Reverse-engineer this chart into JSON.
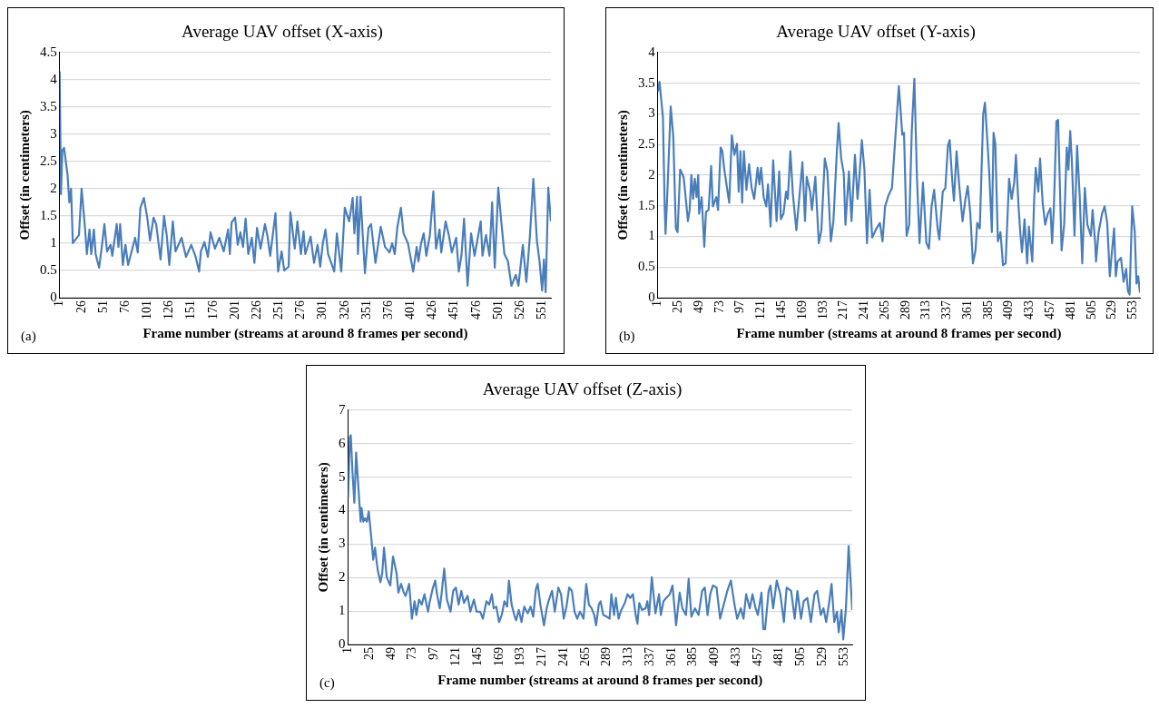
{
  "chart_data": [
    {
      "type": "line",
      "title": "Average UAV offset (X-axis)",
      "xlabel": "Frame number (streams at around 8 frames per second)",
      "ylabel": "Offset (in centimeters)",
      "annotations": [
        "(a)"
      ],
      "grid": "y",
      "marker": "none",
      "xlim": [
        1,
        561
      ],
      "xticks": [
        1,
        26,
        51,
        76,
        101,
        126,
        151,
        176,
        201,
        226,
        251,
        276,
        301,
        326,
        351,
        376,
        401,
        426,
        451,
        476,
        501,
        526,
        551
      ],
      "ylim": [
        0,
        4.5
      ],
      "yticks": [
        0,
        0.5,
        1,
        1.5,
        2,
        2.5,
        3,
        3.5,
        4,
        4.5
      ],
      "series": [
        {
          "color": "#4a7ebb",
          "x": [
            1,
            2.5,
            4,
            6,
            10,
            12,
            14,
            16,
            23,
            26,
            30,
            32,
            35,
            37,
            40,
            42,
            46,
            49,
            52,
            55,
            59,
            61,
            66,
            68,
            70,
            73,
            76,
            79,
            83,
            87,
            90,
            93,
            97,
            101,
            104,
            108,
            111,
            116,
            120,
            123,
            126,
            130,
            133,
            140,
            145,
            151,
            156,
            160,
            162,
            166,
            170,
            173,
            178,
            183,
            188,
            193,
            195,
            197,
            201,
            204,
            207,
            210,
            213,
            216,
            220,
            223,
            226,
            230,
            235,
            238,
            241,
            247,
            250,
            254,
            257,
            262,
            264,
            269,
            272,
            276,
            279,
            281,
            287,
            291,
            295,
            298,
            301,
            304,
            307,
            314,
            317,
            322,
            326,
            331,
            335,
            337,
            340,
            341,
            344,
            349,
            353,
            356,
            361,
            367,
            372,
            377,
            380,
            383,
            386,
            390,
            393,
            398,
            404,
            408,
            410,
            413,
            416,
            419,
            423,
            427,
            430,
            434,
            436,
            441,
            445,
            448,
            453,
            456,
            459,
            462,
            466,
            470,
            474,
            481,
            483,
            487,
            491,
            494,
            497,
            501,
            504,
            508,
            512,
            516,
            521,
            524,
            529,
            533,
            537,
            541,
            545,
            548,
            551,
            553,
            555,
            558,
            561
          ],
          "values": [
            4.15,
            1.9,
            2.7,
            2.75,
            2.25,
            1.75,
            2.0,
            1.0,
            1.15,
            2.0,
            1.25,
            0.8,
            1.25,
            0.8,
            1.25,
            0.8,
            0.55,
            0.93,
            1.35,
            0.85,
            0.97,
            0.77,
            1.35,
            0.93,
            1.35,
            0.6,
            0.97,
            0.6,
            0.85,
            1.1,
            0.83,
            1.65,
            1.83,
            1.45,
            1.05,
            1.47,
            1.35,
            0.7,
            1.5,
            1.15,
            0.6,
            1.4,
            0.85,
            1.1,
            0.75,
            0.97,
            0.75,
            0.48,
            0.85,
            1.02,
            0.75,
            1.2,
            0.9,
            1.1,
            0.85,
            1.25,
            0.8,
            1.38,
            1.47,
            0.97,
            1.2,
            0.93,
            1.45,
            0.8,
            1.1,
            0.64,
            1.28,
            0.9,
            1.35,
            1.12,
            0.77,
            1.55,
            0.48,
            0.85,
            0.5,
            0.57,
            1.57,
            0.9,
            1.4,
            0.8,
            1.22,
            0.8,
            1.12,
            0.64,
            0.97,
            0.57,
            1.0,
            1.25,
            0.8,
            0.48,
            1.18,
            0.48,
            1.65,
            1.4,
            1.83,
            1.18,
            1.85,
            0.8,
            1.85,
            0.45,
            1.28,
            1.35,
            0.64,
            1.3,
            0.93,
            0.83,
            1.0,
            0.8,
            1.3,
            1.65,
            1.18,
            1.0,
            0.48,
            0.93,
            0.67,
            1.0,
            1.18,
            0.77,
            1.15,
            1.95,
            0.9,
            1.25,
            0.83,
            1.4,
            1.12,
            0.83,
            1.1,
            0.48,
            0.77,
            1.45,
            0.22,
            1.18,
            0.77,
            1.4,
            0.77,
            1.15,
            0.77,
            1.75,
            0.55,
            2.02,
            1.47,
            0.8,
            0.67,
            0.22,
            0.42,
            0.22,
            0.97,
            0.29,
            1.12,
            2.18,
            1.05,
            0.67,
            0.13,
            0.7,
            0.1,
            2.02,
            1.4
          ]
        }
      ]
    },
    {
      "type": "line",
      "title": "Average UAV offset (Y-axis)",
      "xlabel": "Frame number (streams at around 8 frames per second)",
      "ylabel": "Offset (in centimeters)",
      "annotations": [
        "(b)"
      ],
      "grid": "y",
      "marker": "none",
      "xlim": [
        1,
        561
      ],
      "xticks": [
        1,
        25,
        49,
        73,
        97,
        121,
        145,
        169,
        193,
        217,
        241,
        265,
        289,
        313,
        337,
        361,
        385,
        409,
        433,
        457,
        481,
        505,
        529,
        553
      ],
      "ylim": [
        0,
        4
      ],
      "yticks": [
        0,
        0.5,
        1,
        1.5,
        2,
        2.5,
        3,
        3.5,
        4
      ],
      "series": [
        {
          "color": "#4a7ebb",
          "x": [
            1,
            3,
            7,
            9,
            10,
            12,
            16,
            19,
            22,
            24,
            27,
            31,
            34,
            36,
            38,
            40,
            42,
            44,
            46,
            48,
            49,
            52,
            55,
            57,
            60,
            63,
            65,
            69,
            71,
            74,
            76,
            78,
            82,
            84,
            87,
            90,
            93,
            95,
            97,
            99,
            101,
            104,
            107,
            110,
            113,
            117,
            119,
            121,
            124,
            127,
            129,
            132,
            135,
            139,
            142,
            144,
            147,
            150,
            152,
            155,
            158,
            162,
            166,
            169,
            172,
            174,
            178,
            180,
            184,
            188,
            191,
            195,
            198,
            202,
            205,
            209,
            211,
            214,
            217,
            219,
            223,
            226,
            230,
            233,
            235,
            238,
            241,
            244,
            247,
            250,
            255,
            259,
            262,
            265,
            269,
            273,
            277,
            281,
            285,
            287,
            290,
            293,
            296,
            299,
            302,
            305,
            309,
            313,
            316,
            319,
            322,
            326,
            328,
            332,
            335,
            338,
            340,
            343,
            345,
            348,
            351,
            355,
            358,
            361,
            364,
            367,
            370,
            372,
            375,
            379,
            381,
            384,
            386,
            389,
            391,
            393,
            396,
            399,
            402,
            405,
            409,
            412,
            415,
            417,
            420,
            422,
            424,
            427,
            430,
            432,
            436,
            438,
            440,
            443,
            445,
            448,
            451,
            454,
            457,
            459,
            461,
            464,
            466,
            470,
            473,
            476,
            478,
            480,
            482,
            485,
            488,
            491,
            494,
            497,
            500,
            504,
            506,
            509,
            510,
            513,
            517,
            520,
            523,
            526,
            528,
            531,
            533,
            535,
            539,
            542,
            545,
            547,
            549,
            552,
            555,
            557,
            559,
            561
          ],
          "values": [
            3.36,
            3.52,
            2.94,
            1.49,
            1.04,
            1.67,
            3.12,
            2.63,
            1.13,
            1.07,
            2.09,
            1.97,
            1.55,
            1.25,
            1.43,
            2.0,
            1.61,
            1.94,
            1.64,
            2.0,
            1.37,
            1.64,
            0.83,
            1.4,
            1.43,
            2.15,
            1.49,
            1.64,
            1.43,
            2.45,
            2.39,
            2.12,
            1.73,
            1.55,
            2.65,
            2.33,
            2.51,
            1.73,
            2.39,
            1.55,
            2.39,
            1.76,
            2.18,
            1.79,
            1.61,
            2.12,
            1.85,
            2.12,
            1.64,
            1.49,
            1.85,
            1.16,
            2.24,
            1.25,
            2.06,
            1.28,
            1.37,
            1.73,
            1.61,
            2.39,
            1.67,
            1.1,
            1.73,
            2.21,
            1.25,
            1.97,
            1.73,
            1.43,
            1.97,
            0.89,
            1.1,
            2.27,
            2.06,
            0.92,
            1.25,
            2.39,
            2.85,
            2.27,
            2.03,
            1.19,
            2.06,
            1.25,
            2.33,
            1.61,
            1.94,
            2.57,
            2.09,
            0.89,
            1.76,
            0.98,
            1.13,
            1.22,
            0.92,
            1.49,
            1.67,
            1.79,
            2.63,
            3.45,
            2.66,
            2.69,
            1.01,
            1.19,
            2.72,
            3.57,
            1.97,
            0.89,
            1.88,
            0.89,
            0.8,
            1.49,
            1.76,
            1.13,
            0.95,
            1.73,
            1.79,
            2.48,
            2.57,
            1.91,
            1.58,
            2.39,
            1.85,
            1.25,
            1.58,
            1.82,
            1.37,
            0.56,
            0.77,
            1.22,
            1.13,
            3.0,
            3.18,
            2.51,
            2.03,
            1.07,
            2.69,
            2.51,
            0.92,
            1.07,
            0.53,
            0.56,
            1.94,
            1.61,
            1.88,
            2.33,
            1.49,
            1.07,
            0.74,
            1.28,
            0.56,
            1.16,
            0.59,
            1.55,
            2.12,
            1.73,
            2.27,
            1.55,
            1.19,
            1.37,
            1.46,
            0.89,
            1.46,
            2.88,
            2.9,
            0.77,
            1.19,
            2.45,
            2.09,
            2.72,
            2.21,
            1.01,
            2.48,
            1.67,
            0.56,
            1.79,
            1.19,
            1.01,
            1.43,
            0.89,
            0.59,
            1.07,
            1.37,
            1.49,
            1.22,
            0.35,
            0.68,
            1.13,
            0.35,
            0.59,
            0.65,
            0.26,
            0.47,
            0.11,
            0.05,
            1.49,
            1.07,
            0.23,
            0.35,
            0.08
          ]
        }
      ]
    },
    {
      "type": "line",
      "title": "Average UAV offset (Z-axis)",
      "xlabel": "Frame number (streams at around 8 frames per second)",
      "ylabel": "Offset (in centimeters)",
      "annotations": [
        "(c)"
      ],
      "grid": "y",
      "marker": "none",
      "xlim": [
        1,
        562
      ],
      "xticks": [
        1,
        25,
        49,
        73,
        97,
        121,
        145,
        169,
        193,
        217,
        241,
        265,
        289,
        313,
        337,
        361,
        385,
        409,
        433,
        457,
        481,
        505,
        529,
        553
      ],
      "ylim": [
        0,
        7
      ],
      "yticks": [
        0,
        1,
        2,
        3,
        4,
        5,
        6,
        7
      ],
      "series": [
        {
          "color": "#4a7ebb",
          "x": [
            1,
            3,
            4,
            6,
            8,
            10,
            12,
            15,
            16,
            18,
            20,
            22,
            24,
            27,
            29,
            31,
            34,
            37,
            39,
            41,
            44,
            48,
            51,
            55,
            57,
            60,
            63,
            65,
            69,
            72,
            75,
            77,
            80,
            83,
            86,
            90,
            92,
            95,
            98,
            100,
            103,
            105,
            108,
            111,
            115,
            118,
            121,
            124,
            127,
            130,
            134,
            137,
            141,
            144,
            148,
            151,
            155,
            158,
            161,
            163,
            166,
            169,
            172,
            175,
            178,
            180,
            183,
            186,
            188,
            191,
            194,
            197,
            201,
            204,
            207,
            210,
            212,
            215,
            219,
            222,
            224,
            228,
            231,
            235,
            238,
            241,
            244,
            247,
            250,
            253,
            256,
            259,
            263,
            266,
            269,
            272,
            275,
            277,
            280,
            282,
            285,
            289,
            292,
            294,
            297,
            299,
            302,
            305,
            309,
            312,
            315,
            318,
            321,
            323,
            325,
            328,
            332,
            334,
            336,
            339,
            343,
            347,
            349,
            352,
            355,
            359,
            362,
            366,
            370,
            373,
            377,
            380,
            383,
            387,
            391,
            395,
            398,
            401,
            404,
            407,
            411,
            415,
            419,
            423,
            427,
            431,
            434,
            438,
            441,
            444,
            448,
            451,
            454,
            457,
            461,
            463,
            465,
            469,
            471,
            474,
            478,
            482,
            486,
            489,
            494,
            498,
            501,
            505,
            508,
            512,
            516,
            520,
            523,
            527,
            530,
            533,
            536,
            539,
            542,
            545,
            547,
            550,
            552,
            555,
            558,
            562
          ],
          "values": [
            4.39,
            6.19,
            6.25,
            5.11,
            4.23,
            5.73,
            4.9,
            3.67,
            4.08,
            3.67,
            3.77,
            3.67,
            3.97,
            3.15,
            2.53,
            2.89,
            2.22,
            1.86,
            2.12,
            2.89,
            2.01,
            1.76,
            2.63,
            2.12,
            1.55,
            1.81,
            1.55,
            1.45,
            1.81,
            0.77,
            1.29,
            0.88,
            1.34,
            1.19,
            1.5,
            0.98,
            1.29,
            1.65,
            1.91,
            1.5,
            1.08,
            1.5,
            2.27,
            1.34,
            0.98,
            1.6,
            1.7,
            1.19,
            1.6,
            1.24,
            1.45,
            0.98,
            1.34,
            0.98,
            0.98,
            0.77,
            1.29,
            1.19,
            1.5,
            1.08,
            1.13,
            0.67,
            0.88,
            1.29,
            1.13,
            1.91,
            1.19,
            0.88,
            0.72,
            1.03,
            0.67,
            1.13,
            0.93,
            1.13,
            0.83,
            1.65,
            1.81,
            1.19,
            0.57,
            1.08,
            1.29,
            1.6,
            0.98,
            1.7,
            1.5,
            0.77,
            1.13,
            1.7,
            1.6,
            0.98,
            0.77,
            0.98,
            0.77,
            1.81,
            1.19,
            1.08,
            0.88,
            0.57,
            1.19,
            1.29,
            0.88,
            0.83,
            0.77,
            1.5,
            0.88,
            1.39,
            0.77,
            1.03,
            1.24,
            1.5,
            1.39,
            1.5,
            0.88,
            0.62,
            1.24,
            1.03,
            1.08,
            1.29,
            0.88,
            2.01,
            0.93,
            1.5,
            0.88,
            1.29,
            1.39,
            1.5,
            1.76,
            0.57,
            1.55,
            1.08,
            0.88,
            1.96,
            0.83,
            1.08,
            0.88,
            1.6,
            1.7,
            0.88,
            1.5,
            1.76,
            1.7,
            0.77,
            1.19,
            1.6,
            1.91,
            1.19,
            0.77,
            1.08,
            0.77,
            1.5,
            1.08,
            1.5,
            1.13,
            0.88,
            1.55,
            0.46,
            0.46,
            1.6,
            1.76,
            1.08,
            1.91,
            1.5,
            0.67,
            1.7,
            1.6,
            0.77,
            1.6,
            0.77,
            1.29,
            1.39,
            0.67,
            1.5,
            1.6,
            0.88,
            1.08,
            0.67,
            1.19,
            1.81,
            0.67,
            0.98,
            0.36,
            1.03,
            0.15,
            1.08,
            2.94,
            1.03
          ]
        }
      ]
    }
  ]
}
